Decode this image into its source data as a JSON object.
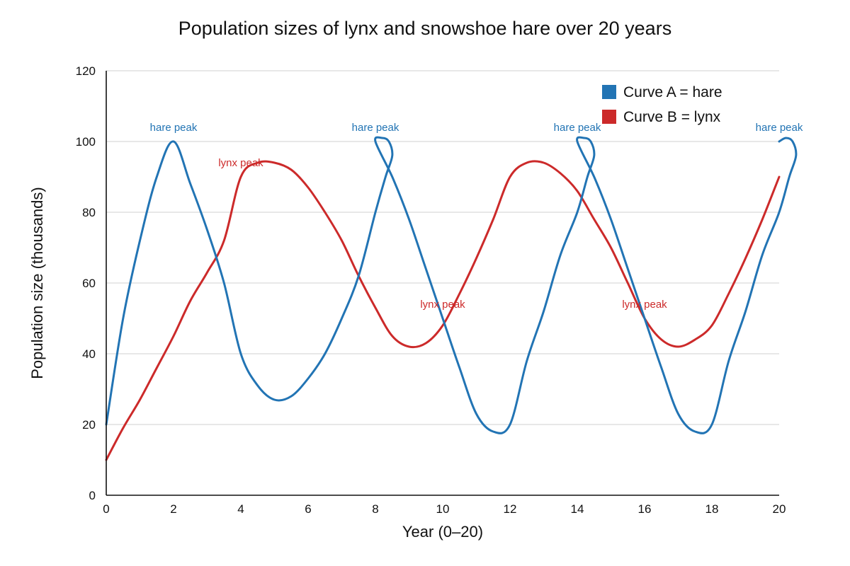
{
  "chart_data": {
    "type": "line",
    "title": "Population sizes of lynx and snowshoe hare over 20 years",
    "xlabel": "Year (0–20)",
    "ylabel": "Population size (thousands)",
    "xlim": [
      0,
      20
    ],
    "ylim": [
      0,
      120
    ],
    "xticks": [
      0,
      2,
      4,
      6,
      8,
      10,
      12,
      14,
      16,
      18,
      20
    ],
    "yticks": [
      0,
      20,
      40,
      60,
      80,
      100,
      120
    ],
    "grid": true,
    "legend_position": "top-right",
    "series": [
      {
        "name": "Curve A = hare",
        "color": "#2274b4",
        "points": [
          [
            0,
            20
          ],
          [
            0.5,
            50
          ],
          [
            1,
            72
          ],
          [
            1.5,
            90
          ],
          [
            2,
            100
          ],
          [
            2.5,
            88
          ],
          [
            3,
            75
          ],
          [
            3.5,
            60
          ],
          [
            4,
            40
          ],
          [
            4.5,
            31
          ],
          [
            5,
            27
          ],
          [
            5.5,
            28
          ],
          [
            6,
            33
          ],
          [
            6.5,
            40
          ],
          [
            7,
            50
          ],
          [
            7.5,
            62
          ],
          [
            8,
            80
          ],
          [
            8.3,
            90
          ],
          [
            8.5,
            96
          ],
          [
            8.4,
            100
          ],
          [
            8.2,
            101
          ],
          [
            8,
            100
          ],
          [
            8.5,
            90
          ],
          [
            9,
            78
          ],
          [
            9.5,
            64
          ],
          [
            10,
            50
          ],
          [
            10.5,
            36
          ],
          [
            11,
            23
          ],
          [
            11.5,
            18
          ],
          [
            12,
            20
          ],
          [
            12.5,
            38
          ],
          [
            13,
            52
          ],
          [
            13.5,
            68
          ],
          [
            14,
            80
          ],
          [
            14.3,
            90
          ],
          [
            14.5,
            96
          ],
          [
            14.4,
            100
          ],
          [
            14.2,
            101
          ],
          [
            14,
            100
          ],
          [
            14.5,
            90
          ],
          [
            15,
            78
          ],
          [
            15.5,
            64
          ],
          [
            16,
            50
          ],
          [
            16.5,
            36
          ],
          [
            17,
            23
          ],
          [
            17.5,
            18
          ],
          [
            18,
            20
          ],
          [
            18.5,
            38
          ],
          [
            19,
            52
          ],
          [
            19.5,
            68
          ],
          [
            20,
            80
          ],
          [
            20.3,
            90
          ],
          [
            20.5,
            96
          ],
          [
            20.4,
            100
          ],
          [
            20.2,
            101
          ],
          [
            20,
            100
          ]
        ]
      },
      {
        "name": "Curve B = lynx",
        "color": "#cc2a2a",
        "points": [
          [
            0,
            10
          ],
          [
            0.5,
            19
          ],
          [
            1,
            27
          ],
          [
            1.5,
            36
          ],
          [
            2,
            45
          ],
          [
            2.5,
            55
          ],
          [
            3,
            63
          ],
          [
            3.5,
            72
          ],
          [
            4,
            90
          ],
          [
            4.5,
            94
          ],
          [
            5,
            94
          ],
          [
            5.5,
            92
          ],
          [
            6,
            87
          ],
          [
            6.5,
            80
          ],
          [
            7,
            72
          ],
          [
            7.5,
            62
          ],
          [
            8,
            53
          ],
          [
            8.5,
            45
          ],
          [
            9,
            42
          ],
          [
            9.5,
            43
          ],
          [
            10,
            48
          ],
          [
            10.5,
            57
          ],
          [
            11,
            67
          ],
          [
            11.5,
            78
          ],
          [
            12,
            90
          ],
          [
            12.5,
            94
          ],
          [
            13,
            94
          ],
          [
            13.5,
            91
          ],
          [
            14,
            86
          ],
          [
            14.5,
            78
          ],
          [
            15,
            70
          ],
          [
            15.5,
            60
          ],
          [
            16,
            50
          ],
          [
            16.5,
            44
          ],
          [
            17,
            42
          ],
          [
            17.5,
            44
          ],
          [
            18,
            48
          ],
          [
            18.5,
            57
          ],
          [
            19,
            67
          ],
          [
            19.5,
            78
          ],
          [
            20,
            90
          ]
        ]
      }
    ],
    "annotations": [
      {
        "text": "hare peak",
        "x": 2,
        "y": 104,
        "color": "#2274b4"
      },
      {
        "text": "hare peak",
        "x": 8,
        "y": 104,
        "color": "#2274b4"
      },
      {
        "text": "hare peak",
        "x": 14,
        "y": 104,
        "color": "#2274b4"
      },
      {
        "text": "hare peak",
        "x": 20,
        "y": 104,
        "color": "#2274b4"
      },
      {
        "text": "lynx peak",
        "x": 4,
        "y": 94,
        "color": "#cc2a2a"
      },
      {
        "text": "lynx peak",
        "x": 10,
        "y": 54,
        "color": "#cc2a2a"
      },
      {
        "text": "lynx peak",
        "x": 16,
        "y": 54,
        "color": "#cc2a2a"
      }
    ]
  }
}
